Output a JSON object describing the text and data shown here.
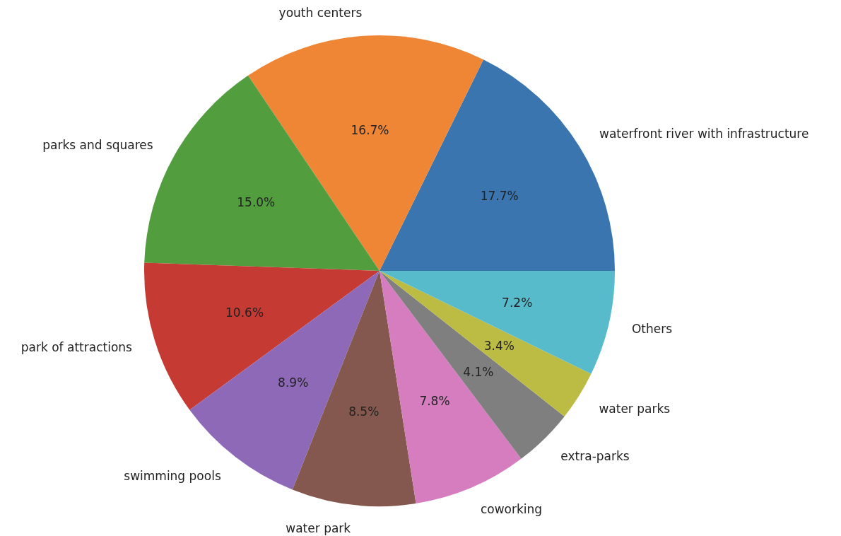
{
  "chart_data": {
    "type": "pie",
    "categories": [
      "waterfront river with infrastructure",
      "youth centers",
      "parks and squares",
      "park of attractions",
      "swimming pools",
      "water park",
      "coworking",
      "extra-parks",
      "water parks",
      "Others"
    ],
    "values": [
      17.7,
      16.7,
      15.0,
      10.6,
      8.9,
      8.5,
      7.8,
      4.1,
      3.4,
      7.2
    ],
    "value_labels": [
      "17.7%",
      "16.7%",
      "15.0%",
      "10.6%",
      "8.9%",
      "8.5%",
      "7.8%",
      "4.1%",
      "3.4%",
      "7.2%"
    ],
    "colors": [
      "#3b75af",
      "#ef8636",
      "#529e3e",
      "#c53a32",
      "#8d69b8",
      "#84584e",
      "#d57dbf",
      "#7f7f7f",
      "#bcbc45",
      "#58bbcc"
    ],
    "legend": false
  }
}
